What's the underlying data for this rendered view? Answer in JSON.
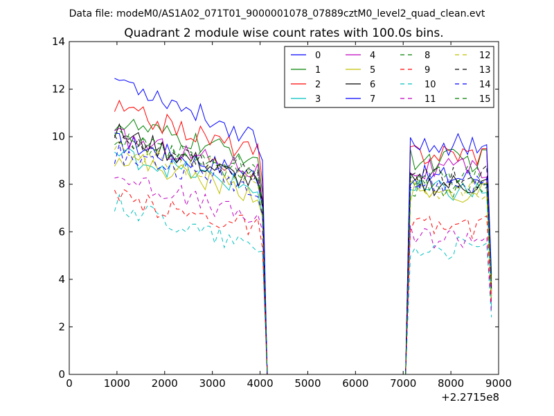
{
  "chart_data": {
    "type": "line",
    "suptitle": "Data file: modeM0/AS1A02_071T01_9000001078_07889cztM0_level2_quad_clean.evt",
    "title": "Quadrant 2 module wise count rates with 100.0s bins.",
    "xlabel": "",
    "ylabel": "",
    "x_offset_label": "+2.2715e8",
    "xlim": [
      0,
      9000
    ],
    "ylim": [
      0,
      14
    ],
    "xticks": [
      0,
      1000,
      2000,
      3000,
      4000,
      5000,
      6000,
      7000,
      8000,
      9000
    ],
    "yticks": [
      0,
      2,
      4,
      6,
      8,
      10,
      12,
      14
    ],
    "xtick_labels": [
      "0",
      "1000",
      "2000",
      "3000",
      "4000",
      "5000",
      "6000",
      "7000",
      "8000",
      "9000"
    ],
    "ytick_labels": [
      "0",
      "2",
      "4",
      "6",
      "8",
      "10",
      "12",
      "14"
    ],
    "grid": false,
    "legend_position": "top-right",
    "legend_columns": 4,
    "segments": {
      "first": {
        "x_start": 950,
        "x_end": 3950,
        "step": 100
      },
      "second": {
        "x_start": 7150,
        "x_end": 8750,
        "step": 100
      },
      "drop_x": 4150,
      "rise_x": 7050,
      "end_x": 8850,
      "zero_interval": [
        4150,
        7050
      ]
    },
    "series": [
      {
        "name": "0",
        "color": "#0000ff",
        "style": "solid",
        "first_start": 9.8,
        "first_end": 8.4,
        "second": 8.3,
        "end": 3.5
      },
      {
        "name": "1",
        "color": "#008000",
        "style": "solid",
        "first_start": 10.6,
        "first_end": 9.1,
        "second": 9.0,
        "end": 4.0
      },
      {
        "name": "2",
        "color": "#ff0000",
        "style": "solid",
        "first_start": 11.2,
        "first_end": 9.3,
        "second": 9.3,
        "end": 3.3
      },
      {
        "name": "3",
        "color": "#00bfbf",
        "style": "solid",
        "first_start": 9.3,
        "first_end": 7.8,
        "second": 7.7,
        "end": 2.8
      },
      {
        "name": "4",
        "color": "#bf00bf",
        "style": "solid",
        "first_start": 10.0,
        "first_end": 8.6,
        "second": 8.6,
        "end": 3.4
      },
      {
        "name": "5",
        "color": "#bfbf00",
        "style": "solid",
        "first_start": 9.2,
        "first_end": 7.6,
        "second": 7.6,
        "end": 3.2
      },
      {
        "name": "6",
        "color": "#000000",
        "style": "solid",
        "first_start": 10.2,
        "first_end": 8.0,
        "second": 8.0,
        "end": 3.6
      },
      {
        "name": "7",
        "color": "#0000ff",
        "style": "solid",
        "first_start": 12.5,
        "first_end": 9.9,
        "second": 9.7,
        "end": 4.2
      },
      {
        "name": "8",
        "color": "#008000",
        "style": "dashed",
        "first_start": 9.9,
        "first_end": 8.6,
        "second": 8.3,
        "end": 3.9
      },
      {
        "name": "9",
        "color": "#ff0000",
        "style": "dashed",
        "first_start": 7.4,
        "first_end": 6.2,
        "second": 6.2,
        "end": 3.0
      },
      {
        "name": "10",
        "color": "#00bfbf",
        "style": "dashed",
        "first_start": 7.2,
        "first_end": 5.3,
        "second": 5.3,
        "end": 2.4
      },
      {
        "name": "11",
        "color": "#bf00bf",
        "style": "dashed",
        "first_start": 8.4,
        "first_end": 6.5,
        "second": 5.8,
        "end": 2.6
      },
      {
        "name": "12",
        "color": "#bfbf00",
        "style": "dashed",
        "first_start": 9.4,
        "first_end": 8.3,
        "second": 7.8,
        "end": 3.5
      },
      {
        "name": "13",
        "color": "#000000",
        "style": "dashed",
        "first_start": 9.8,
        "first_end": 8.4,
        "second": 8.3,
        "end": 3.6
      },
      {
        "name": "14",
        "color": "#0000ff",
        "style": "dashed",
        "first_start": 9.3,
        "first_end": 7.9,
        "second": 8.0,
        "end": 3.7
      },
      {
        "name": "15",
        "color": "#008000",
        "style": "dashed",
        "first_start": 9.9,
        "first_end": 8.2,
        "second": 7.9,
        "end": 3.8
      }
    ]
  }
}
